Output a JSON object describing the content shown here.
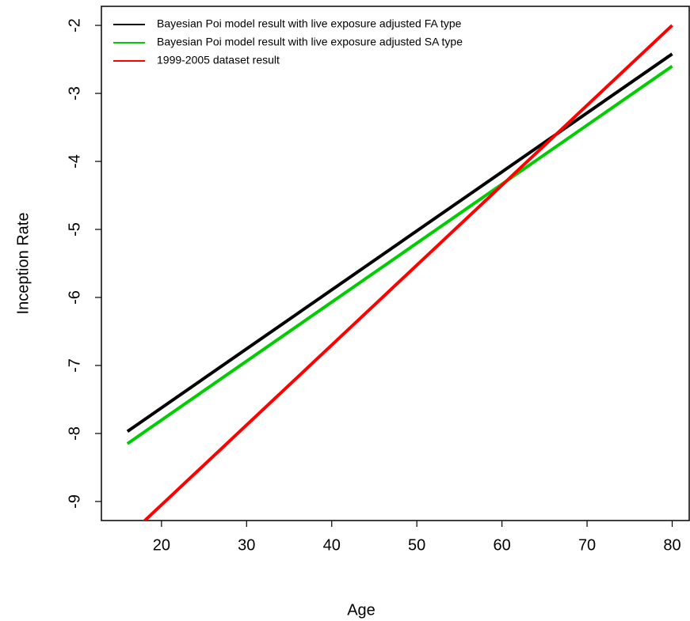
{
  "chart_data": {
    "type": "line",
    "x_label": "Age",
    "y_label": "Inception Rate",
    "x": [
      16,
      80
    ],
    "series": [
      {
        "name": "Bayesian Poi model result with live exposure adjusted FA type",
        "color": "#000000",
        "values": [
          -7.97,
          -2.42
        ]
      },
      {
        "name": "Bayesian Poi model result with live exposure adjusted SA type",
        "color": "#00cd00",
        "values": [
          -8.15,
          -2.6
        ]
      },
      {
        "name": "1999-2005 dataset result",
        "color": "#ff0000",
        "values": [
          -9.52,
          -2.0
        ]
      }
    ],
    "xlim": [
      12.94,
      82.0
    ],
    "ylim": [
      -9.28,
      -1.72
    ],
    "xticks": [
      20,
      30,
      40,
      50,
      60,
      70,
      80
    ],
    "yticks": [
      -9,
      -8,
      -7,
      -6,
      -5,
      -4,
      -3,
      -2
    ],
    "legend": "top-left",
    "grid": false
  }
}
